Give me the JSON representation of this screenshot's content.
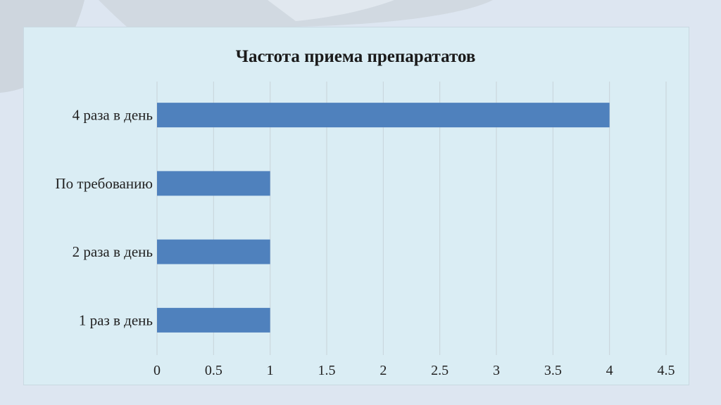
{
  "chart_data": {
    "type": "bar",
    "orientation": "horizontal",
    "title": "Частота приема препарататов",
    "categories": [
      "4 раза в день",
      "По требованию",
      "2 раза в день",
      "1 раз в день"
    ],
    "values": [
      4,
      1,
      1,
      1
    ],
    "xticks": [
      "0",
      "0.5",
      "1",
      "1.5",
      "2",
      "2.5",
      "3",
      "3.5",
      "4",
      "4.5"
    ],
    "xlim": [
      0,
      4.5
    ],
    "grid": true,
    "legend": "none",
    "bar_color": "#4f81bd",
    "grid_color": "#c8d3d9"
  }
}
